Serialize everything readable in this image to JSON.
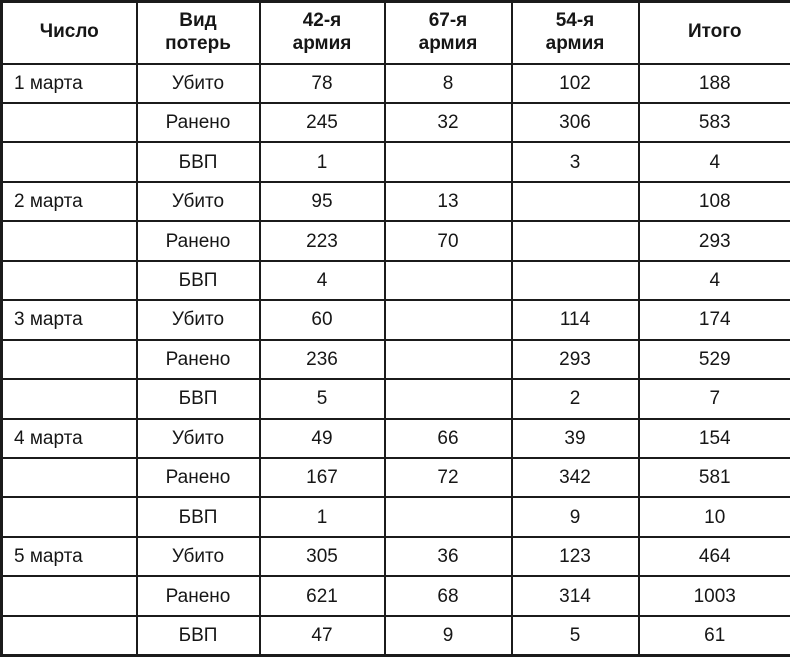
{
  "table": {
    "headers": [
      "Число",
      "Вид\nпотерь",
      "42-я\nармия",
      "67-я\nармия",
      "54-я\nармия",
      "Итого"
    ],
    "rows": [
      [
        "1 марта",
        "Убито",
        "78",
        "8",
        "102",
        "188"
      ],
      [
        "",
        "Ранено",
        "245",
        "32",
        "306",
        "583"
      ],
      [
        "",
        "БВП",
        "1",
        "",
        "3",
        "4"
      ],
      [
        "2 марта",
        "Убито",
        "95",
        "13",
        "",
        "108"
      ],
      [
        "",
        "Ранено",
        "223",
        "70",
        "",
        "293"
      ],
      [
        "",
        "БВП",
        "4",
        "",
        "",
        "4"
      ],
      [
        "3 марта",
        "Убито",
        "60",
        "",
        "114",
        "174"
      ],
      [
        "",
        "Ранено",
        "236",
        "",
        "293",
        "529"
      ],
      [
        "",
        "БВП",
        "5",
        "",
        "2",
        "7"
      ],
      [
        "4 марта",
        "Убито",
        "49",
        "66",
        "39",
        "154"
      ],
      [
        "",
        "Ранено",
        "167",
        "72",
        "342",
        "581"
      ],
      [
        "",
        "БВП",
        "1",
        "",
        "9",
        "10"
      ],
      [
        "5 марта",
        "Убито",
        "305",
        "36",
        "123",
        "464"
      ],
      [
        "",
        "Ранено",
        "621",
        "68",
        "314",
        "1003"
      ],
      [
        "",
        "БВП",
        "47",
        "9",
        "5",
        "61"
      ]
    ]
  }
}
